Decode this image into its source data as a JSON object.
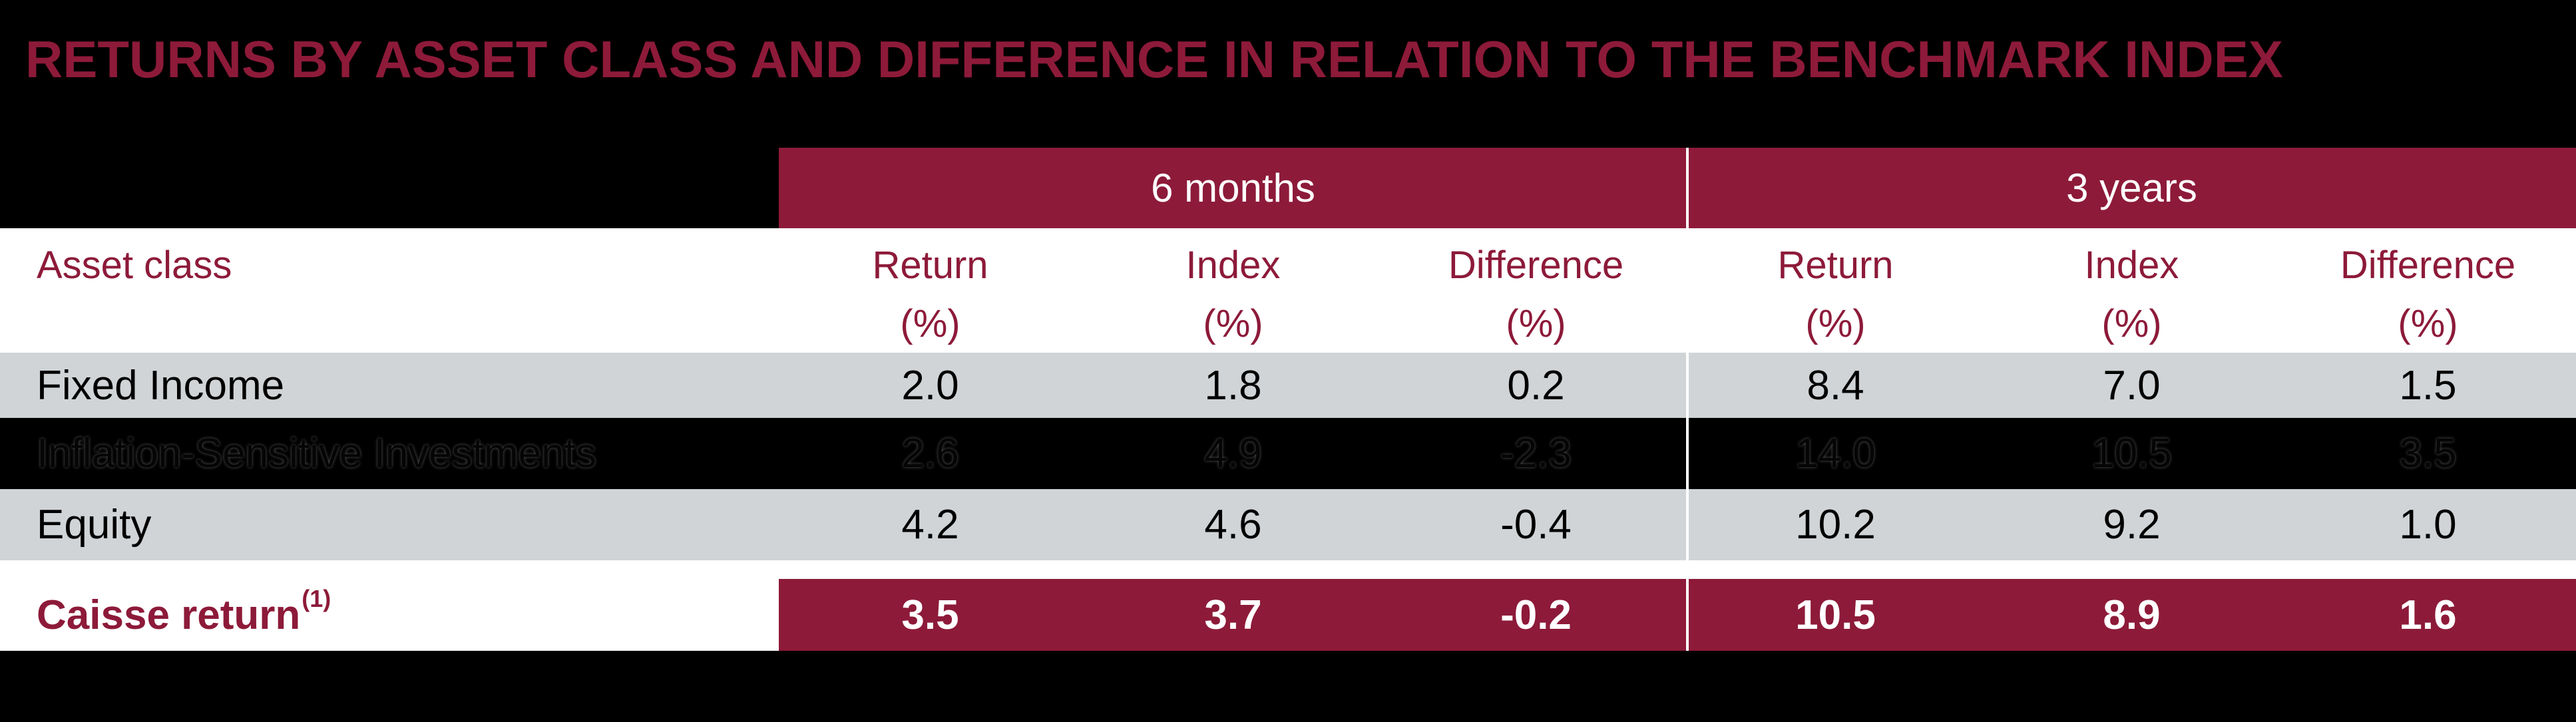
{
  "title": "RETURNS BY ASSET CLASS AND DIFFERENCE IN RELATION TO THE BENCHMARK INDEX",
  "colors": {
    "maroon": "#8d1a39",
    "row-gray": "#d0d4d6",
    "white": "#ffffff",
    "black": "#000000"
  },
  "table": {
    "period_headers": [
      "6 months",
      "3 years"
    ],
    "asset_class_label": "Asset class",
    "metric_headers": [
      {
        "label": "Return",
        "unit": "(%)"
      },
      {
        "label": "Index",
        "unit": "(%)"
      },
      {
        "label": "Difference",
        "unit": "(%)"
      },
      {
        "label": "Return",
        "unit": "(%)"
      },
      {
        "label": "Index",
        "unit": "(%)"
      },
      {
        "label": "Difference",
        "unit": "(%)"
      }
    ],
    "rows": [
      {
        "label": "Fixed Income",
        "variant": "striped",
        "values": [
          "2.0",
          "1.8",
          "0.2",
          "8.4",
          "7.0",
          "1.5"
        ]
      },
      {
        "label": "Inflation-Sensitive Investments",
        "variant": "hidden",
        "values": [
          "2.6",
          "4.9",
          "-2.3",
          "14.0",
          "10.5",
          "3.5"
        ]
      },
      {
        "label": "Equity",
        "variant": "striped",
        "values": [
          "4.2",
          "4.6",
          "-0.4",
          "10.2",
          "9.2",
          "1.0"
        ]
      },
      {
        "label": "Caisse return",
        "footnote": "(1)",
        "variant": "total",
        "values": [
          "3.5",
          "3.7",
          "-0.2",
          "10.5",
          "8.9",
          "1.6"
        ]
      }
    ]
  },
  "chart_data": {
    "type": "table",
    "title": "RETURNS BY ASSET CLASS AND DIFFERENCE IN RELATION TO THE BENCHMARK INDEX",
    "column_groups": [
      "6 months",
      "3 years"
    ],
    "columns": [
      "Asset class",
      "Return (%)",
      "Index (%)",
      "Difference (%)",
      "Return (%)",
      "Index (%)",
      "Difference (%)"
    ],
    "rows": [
      [
        "Fixed Income",
        2.0,
        1.8,
        0.2,
        8.4,
        7.0,
        1.5
      ],
      [
        "Inflation-Sensitive Investments",
        2.6,
        4.9,
        -2.3,
        14.0,
        10.5,
        3.5
      ],
      [
        "Equity",
        4.2,
        4.6,
        -0.4,
        10.2,
        9.2,
        1.0
      ],
      [
        "Caisse return (1)",
        3.5,
        3.7,
        -0.2,
        10.5,
        8.9,
        1.6
      ]
    ]
  }
}
